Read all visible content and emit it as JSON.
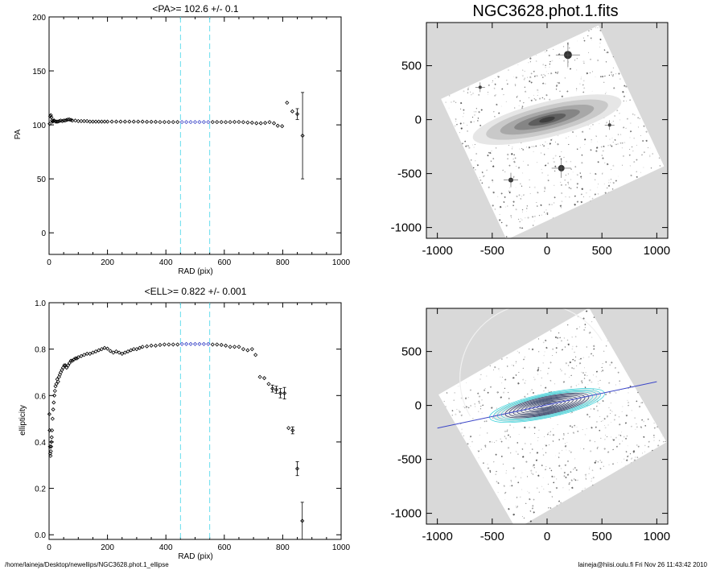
{
  "footer": {
    "path": "/home/laineja/Desktop/newellips/NGC3628.phot.1_ellipse",
    "user_date": "laineja@hiisi.oulu.fi  Fri Nov 26 11:43:42 2010"
  },
  "colors": {
    "marker": "#000000",
    "highlight": "#3a45c8",
    "guide": "#66ddee",
    "image_bg": "#d9d9d9",
    "ellipse": "#3ad0d8",
    "major_axis": "#3a45c8"
  },
  "chart_data": [
    {
      "type": "scatter",
      "title": "<PA>= 102.6 +/-   0.1",
      "xlabel": "RAD (pix)",
      "ylabel": "PA",
      "xlim": [
        0,
        1000
      ],
      "ylim": [
        -20,
        200
      ],
      "xticks": [
        0,
        200,
        400,
        600,
        800,
        1000
      ],
      "yticks": [
        0,
        50,
        100,
        150,
        200
      ],
      "vlines": [
        450,
        550
      ],
      "highlight_range": [
        450,
        550
      ],
      "points": [
        [
          2,
          101
        ],
        [
          4,
          108
        ],
        [
          6,
          109
        ],
        [
          8,
          107
        ],
        [
          10,
          104
        ],
        [
          12,
          103
        ],
        [
          14,
          103.5
        ],
        [
          16,
          104
        ],
        [
          18,
          104
        ],
        [
          22,
          103
        ],
        [
          26,
          103
        ],
        [
          30,
          103
        ],
        [
          35,
          103.5
        ],
        [
          40,
          104
        ],
        [
          45,
          103.5
        ],
        [
          50,
          104
        ],
        [
          55,
          104
        ],
        [
          60,
          104.5
        ],
        [
          65,
          105
        ],
        [
          70,
          105
        ],
        [
          75,
          104.5
        ],
        [
          80,
          104
        ],
        [
          90,
          104
        ],
        [
          100,
          103.5
        ],
        [
          110,
          103.5
        ],
        [
          120,
          103.5
        ],
        [
          130,
          103.5
        ],
        [
          140,
          103
        ],
        [
          150,
          103
        ],
        [
          160,
          103
        ],
        [
          170,
          103
        ],
        [
          180,
          103
        ],
        [
          190,
          103
        ],
        [
          200,
          103
        ],
        [
          215,
          103
        ],
        [
          230,
          103
        ],
        [
          245,
          103
        ],
        [
          260,
          103
        ],
        [
          275,
          103
        ],
        [
          290,
          103
        ],
        [
          305,
          103
        ],
        [
          320,
          103
        ],
        [
          335,
          102.8
        ],
        [
          350,
          102.8
        ],
        [
          365,
          102.8
        ],
        [
          380,
          102.6
        ],
        [
          395,
          102.6
        ],
        [
          410,
          102.6
        ],
        [
          425,
          102.6
        ],
        [
          440,
          102.6
        ],
        [
          455,
          102.6
        ],
        [
          470,
          102.6
        ],
        [
          485,
          102.6
        ],
        [
          500,
          102.6
        ],
        [
          515,
          102.6
        ],
        [
          530,
          102.6
        ],
        [
          545,
          102.6
        ],
        [
          560,
          102.6
        ],
        [
          575,
          102.6
        ],
        [
          590,
          102.6
        ],
        [
          605,
          102.5
        ],
        [
          620,
          102.6
        ],
        [
          635,
          102.7
        ],
        [
          650,
          102.7
        ],
        [
          665,
          102.5
        ],
        [
          680,
          102.2
        ],
        [
          695,
          102
        ],
        [
          710,
          101.5
        ],
        [
          725,
          101.5
        ],
        [
          740,
          101.8
        ],
        [
          755,
          102.5
        ],
        [
          770,
          101.5
        ],
        [
          783,
          99.2
        ],
        [
          798,
          98.8
        ],
        [
          815,
          120.5
        ],
        [
          833,
          112.5
        ],
        [
          850,
          110
        ],
        [
          868,
          90
        ]
      ],
      "errorbars": [
        [
          850,
          110,
          5
        ],
        [
          868,
          90,
          40
        ]
      ]
    },
    {
      "type": "scatter",
      "title": "<ELL>= 0.822 +/-  0.001",
      "xlabel": "RAD (pix)",
      "ylabel": "ellipticity",
      "xlim": [
        0,
        1000
      ],
      "ylim": [
        -0.02,
        1.0
      ],
      "xticks": [
        0,
        200,
        400,
        600,
        800,
        1000
      ],
      "yticks": [
        0.0,
        0.2,
        0.4,
        0.6,
        0.8,
        1.0
      ],
      "vlines": [
        450,
        550
      ],
      "highlight_range": [
        450,
        550
      ],
      "points": [
        [
          1,
          0.52
        ],
        [
          2,
          0.45
        ],
        [
          3,
          0.38
        ],
        [
          4,
          0.35
        ],
        [
          5,
          0.34
        ],
        [
          6,
          0.36
        ],
        [
          7,
          0.38
        ],
        [
          8,
          0.4
        ],
        [
          9,
          0.42
        ],
        [
          10,
          0.45
        ],
        [
          12,
          0.5
        ],
        [
          14,
          0.54
        ],
        [
          16,
          0.57
        ],
        [
          18,
          0.6
        ],
        [
          20,
          0.62
        ],
        [
          22,
          0.64
        ],
        [
          25,
          0.65
        ],
        [
          28,
          0.67
        ],
        [
          31,
          0.66
        ],
        [
          34,
          0.68
        ],
        [
          37,
          0.69
        ],
        [
          40,
          0.7
        ],
        [
          44,
          0.71
        ],
        [
          48,
          0.72
        ],
        [
          52,
          0.73
        ],
        [
          56,
          0.73
        ],
        [
          60,
          0.72
        ],
        [
          65,
          0.73
        ],
        [
          70,
          0.74
        ],
        [
          75,
          0.75
        ],
        [
          80,
          0.75
        ],
        [
          85,
          0.755
        ],
        [
          90,
          0.76
        ],
        [
          95,
          0.76
        ],
        [
          100,
          0.765
        ],
        [
          110,
          0.77
        ],
        [
          120,
          0.775
        ],
        [
          130,
          0.78
        ],
        [
          140,
          0.78
        ],
        [
          150,
          0.785
        ],
        [
          160,
          0.79
        ],
        [
          170,
          0.795
        ],
        [
          180,
          0.8
        ],
        [
          190,
          0.805
        ],
        [
          200,
          0.802
        ],
        [
          210,
          0.792
        ],
        [
          220,
          0.785
        ],
        [
          230,
          0.79
        ],
        [
          240,
          0.785
        ],
        [
          250,
          0.78
        ],
        [
          260,
          0.785
        ],
        [
          270,
          0.79
        ],
        [
          280,
          0.795
        ],
        [
          290,
          0.8
        ],
        [
          300,
          0.8
        ],
        [
          310,
          0.805
        ],
        [
          320,
          0.81
        ],
        [
          335,
          0.812
        ],
        [
          350,
          0.815
        ],
        [
          365,
          0.815
        ],
        [
          380,
          0.818
        ],
        [
          395,
          0.82
        ],
        [
          410,
          0.82
        ],
        [
          425,
          0.82
        ],
        [
          440,
          0.82
        ],
        [
          455,
          0.822
        ],
        [
          470,
          0.822
        ],
        [
          485,
          0.822
        ],
        [
          500,
          0.822
        ],
        [
          515,
          0.822
        ],
        [
          530,
          0.822
        ],
        [
          545,
          0.822
        ],
        [
          560,
          0.82
        ],
        [
          575,
          0.82
        ],
        [
          590,
          0.818
        ],
        [
          605,
          0.815
        ],
        [
          620,
          0.81
        ],
        [
          635,
          0.81
        ],
        [
          650,
          0.81
        ],
        [
          665,
          0.8
        ],
        [
          680,
          0.795
        ],
        [
          695,
          0.8
        ],
        [
          707,
          0.775
        ],
        [
          722,
          0.68
        ],
        [
          737,
          0.675
        ],
        [
          752,
          0.65
        ],
        [
          765,
          0.63
        ],
        [
          778,
          0.625
        ],
        [
          792,
          0.61
        ],
        [
          806,
          0.61
        ],
        [
          820,
          0.46
        ],
        [
          834,
          0.45
        ],
        [
          850,
          0.285
        ],
        [
          867,
          0.06
        ]
      ],
      "errorbars": [
        [
          765,
          0.63,
          0.015
        ],
        [
          778,
          0.625,
          0.015
        ],
        [
          792,
          0.61,
          0.02
        ],
        [
          806,
          0.61,
          0.025
        ],
        [
          834,
          0.45,
          0.015
        ],
        [
          850,
          0.285,
          0.03
        ],
        [
          867,
          0.06,
          0.08
        ]
      ]
    },
    {
      "type": "image",
      "title": "NGC3628.phot.1.fits",
      "xlim": [
        -1100,
        1100
      ],
      "ylim": [
        -1100,
        900
      ],
      "xticks": [
        -1000,
        -500,
        0,
        500,
        1000
      ],
      "yticks": [
        -1000,
        -500,
        0,
        500
      ]
    },
    {
      "type": "image",
      "title": "",
      "xlim": [
        -1100,
        1100
      ],
      "ylim": [
        -1100,
        900
      ],
      "xticks": [
        -1000,
        -500,
        0,
        500,
        1000
      ],
      "yticks": [
        -1000,
        -500,
        0,
        500
      ],
      "major_axis": [
        [
          -1000,
          -210
        ],
        [
          1000,
          220
        ]
      ]
    }
  ]
}
